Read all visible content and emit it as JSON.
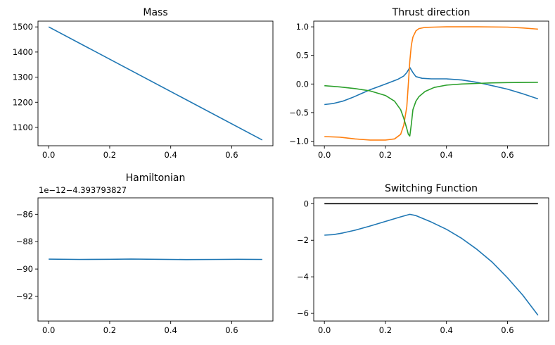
{
  "chart_data": [
    {
      "type": "line",
      "title": "Mass",
      "xlim": [
        -0.035,
        0.735
      ],
      "ylim": [
        1027,
        1523
      ],
      "xticks": [
        0.0,
        0.2,
        0.4,
        0.6
      ],
      "xtick_labels": [
        "0.0",
        "0.2",
        "0.4",
        "0.6"
      ],
      "yticks": [
        1100,
        1200,
        1300,
        1400,
        1500
      ],
      "ytick_labels": [
        "1100",
        "1200",
        "1300",
        "1400",
        "1500"
      ],
      "series": [
        {
          "color": "#1f77b4",
          "x": [
            0.0,
            0.7
          ],
          "y": [
            1500,
            1050
          ]
        }
      ]
    },
    {
      "type": "line",
      "title": "Thrust direction",
      "xlim": [
        -0.035,
        0.735
      ],
      "ylim": [
        -1.08,
        1.1
      ],
      "xticks": [
        0.0,
        0.2,
        0.4,
        0.6
      ],
      "xtick_labels": [
        "0.0",
        "0.2",
        "0.4",
        "0.6"
      ],
      "yticks": [
        -1.0,
        -0.5,
        0.0,
        0.5,
        1.0
      ],
      "ytick_labels": [
        "−1.0",
        "−0.5",
        "0.0",
        "0.5",
        "1.0"
      ],
      "series": [
        {
          "color": "#1f77b4",
          "x": [
            0.0,
            0.03,
            0.06,
            0.09,
            0.12,
            0.15,
            0.18,
            0.21,
            0.24,
            0.26,
            0.27,
            0.28,
            0.29,
            0.3,
            0.32,
            0.35,
            0.4,
            0.45,
            0.5,
            0.55,
            0.6,
            0.65,
            0.7
          ],
          "y": [
            -0.36,
            -0.34,
            -0.3,
            -0.24,
            -0.17,
            -0.1,
            -0.04,
            0.02,
            0.08,
            0.14,
            0.2,
            0.29,
            0.2,
            0.13,
            0.1,
            0.09,
            0.09,
            0.07,
            0.03,
            -0.03,
            -0.09,
            -0.17,
            -0.26
          ]
        },
        {
          "color": "#ff7f0e",
          "x": [
            0.0,
            0.05,
            0.1,
            0.15,
            0.2,
            0.23,
            0.25,
            0.26,
            0.27,
            0.275,
            0.28,
            0.285,
            0.29,
            0.3,
            0.31,
            0.33,
            0.36,
            0.4,
            0.5,
            0.6,
            0.65,
            0.7
          ],
          "y": [
            -0.92,
            -0.93,
            -0.96,
            -0.98,
            -0.98,
            -0.96,
            -0.88,
            -0.72,
            -0.4,
            0.0,
            0.4,
            0.68,
            0.82,
            0.93,
            0.97,
            0.99,
            0.995,
            1.0,
            1.0,
            0.995,
            0.98,
            0.96
          ]
        },
        {
          "color": "#2ca02c",
          "x": [
            0.0,
            0.05,
            0.1,
            0.15,
            0.2,
            0.23,
            0.25,
            0.26,
            0.27,
            0.275,
            0.28,
            0.285,
            0.29,
            0.3,
            0.31,
            0.33,
            0.36,
            0.4,
            0.45,
            0.5,
            0.55,
            0.6,
            0.7
          ],
          "y": [
            -0.03,
            -0.05,
            -0.08,
            -0.12,
            -0.2,
            -0.3,
            -0.45,
            -0.6,
            -0.78,
            -0.88,
            -0.91,
            -0.7,
            -0.45,
            -0.3,
            -0.22,
            -0.13,
            -0.06,
            -0.02,
            0.0,
            0.01,
            0.02,
            0.025,
            0.03
          ]
        }
      ]
    },
    {
      "type": "line",
      "title": "Hamiltonian",
      "offset_label": "1e−12−4.393793827",
      "xlim": [
        -0.035,
        0.735
      ],
      "ylim": [
        -93.8,
        -84.8
      ],
      "xticks": [
        0.0,
        0.2,
        0.4,
        0.6
      ],
      "xtick_labels": [
        "0.0",
        "0.2",
        "0.4",
        "0.6"
      ],
      "yticks": [
        -92,
        -90,
        -88,
        -86
      ],
      "ytick_labels": [
        "−92",
        "−90",
        "−88",
        "−86"
      ],
      "series": [
        {
          "color": "#1f77b4",
          "x": [
            0.0,
            0.1,
            0.2,
            0.27,
            0.35,
            0.45,
            0.55,
            0.62,
            0.7
          ],
          "y": [
            -89.28,
            -89.3,
            -89.29,
            -89.27,
            -89.29,
            -89.31,
            -89.3,
            -89.29,
            -89.3
          ]
        }
      ]
    },
    {
      "type": "line",
      "title": "Switching Function",
      "xlim": [
        -0.035,
        0.735
      ],
      "ylim": [
        -6.42,
        0.32
      ],
      "xticks": [
        0.0,
        0.2,
        0.4,
        0.6
      ],
      "xtick_labels": [
        "0.0",
        "0.2",
        "0.4",
        "0.6"
      ],
      "yticks": [
        -6,
        -4,
        -2,
        0
      ],
      "ytick_labels": [
        "−6",
        "−4",
        "−2",
        "0"
      ],
      "series": [
        {
          "color": "#1f77b4",
          "x": [
            0.0,
            0.03,
            0.06,
            0.1,
            0.15,
            0.2,
            0.25,
            0.28,
            0.3,
            0.35,
            0.4,
            0.45,
            0.5,
            0.55,
            0.6,
            0.65,
            0.7
          ],
          "y": [
            -1.72,
            -1.69,
            -1.6,
            -1.45,
            -1.22,
            -0.97,
            -0.72,
            -0.58,
            -0.65,
            -1.0,
            -1.4,
            -1.9,
            -2.5,
            -3.2,
            -4.05,
            -5.0,
            -6.1
          ]
        },
        {
          "color": "#000000",
          "x": [
            0.0,
            0.7
          ],
          "y": [
            0,
            0
          ]
        }
      ]
    }
  ]
}
